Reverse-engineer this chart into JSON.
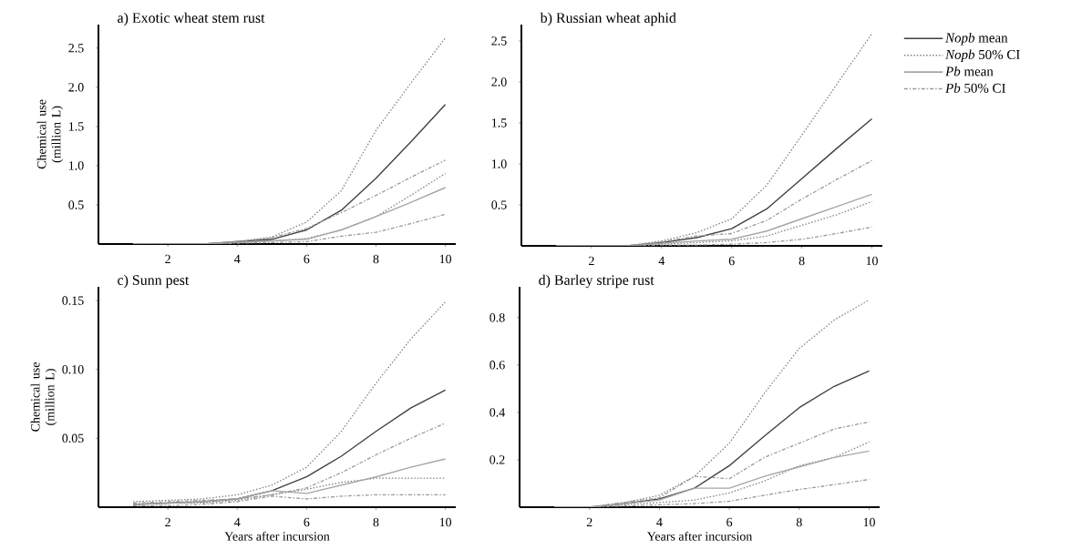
{
  "chart_data": [
    {
      "type": "line",
      "title": "a) Exotic wheat stem rust",
      "ylabel": "Chemical use (million L)",
      "x": [
        1,
        2,
        3,
        4,
        5,
        6,
        7,
        8,
        9,
        10
      ],
      "xlim": [
        0,
        10.3
      ],
      "ylim": [
        0,
        2.8
      ],
      "xticks": [
        2,
        4,
        6,
        8,
        10
      ],
      "yticks": [
        0.5,
        {
          "value": 1,
          "label": "1.0"
        },
        1.5,
        {
          "value": 2,
          "label": "2.0"
        },
        2.5
      ],
      "legend": false,
      "series": [
        {
          "color": "#404040",
          "line_style": "solid",
          "values": [
            0,
            0,
            0,
            0.03,
            0.06,
            0.18,
            0.43,
            0.84,
            1.3,
            1.78
          ]
        },
        {
          "color": "#808080",
          "line_style": "dotted",
          "values": [
            0,
            0,
            0,
            0.03,
            0.09,
            0.28,
            0.68,
            1.45,
            2.05,
            2.63
          ]
        },
        {
          "color": "#808080",
          "line_style": "dotted",
          "values": [
            0,
            0,
            0,
            0.02,
            0.04,
            0.07,
            0.18,
            0.35,
            0.62,
            0.9
          ]
        },
        {
          "color": "#a6a6a6",
          "line_style": "solid",
          "values": [
            0,
            0,
            0,
            0.02,
            0.04,
            0.06,
            0.18,
            0.35,
            0.53,
            0.72
          ]
        },
        {
          "color": "#999999",
          "line_style": "dashdot",
          "values": [
            0,
            0,
            0,
            0.03,
            0.08,
            0.2,
            0.4,
            0.62,
            0.85,
            1.07
          ]
        },
        {
          "color": "#999999",
          "line_style": "dashdot",
          "values": [
            0,
            0,
            0,
            0.01,
            0.02,
            0.03,
            0.1,
            0.15,
            0.26,
            0.38
          ]
        }
      ]
    },
    {
      "type": "line",
      "title": "b) Russian wheat aphid",
      "x": [
        1,
        2,
        3,
        4,
        5,
        6,
        7,
        8,
        9,
        10
      ],
      "xlim": [
        0,
        10.3
      ],
      "ylim": [
        0,
        2.7
      ],
      "xticks": [
        2,
        4,
        6,
        8,
        10
      ],
      "yticks": [
        0.5,
        {
          "value": 1,
          "label": "1.0"
        },
        1.5,
        {
          "value": 2,
          "label": "2.0"
        },
        2.5
      ],
      "legend": "right",
      "series": [
        {
          "name": "*Nopb* mean",
          "color": "#404040",
          "line_style": "solid",
          "values": [
            0,
            0,
            0,
            0.04,
            0.1,
            0.21,
            0.45,
            0.82,
            1.19,
            1.55
          ]
        },
        {
          "name": "*Nopb* 50% CI",
          "color": "#808080",
          "line_style": "dotted",
          "values": [
            0,
            0,
            0,
            0.06,
            0.16,
            0.33,
            0.74,
            1.35,
            1.97,
            2.59
          ]
        },
        {
          "color": "#808080",
          "line_style": "dotted",
          "values": [
            0,
            0,
            0,
            0.02,
            0.04,
            0.06,
            0.12,
            0.25,
            0.38,
            0.54
          ]
        },
        {
          "name": "*Pb* mean",
          "color": "#a6a6a6",
          "line_style": "solid",
          "values": [
            0,
            0,
            0,
            0.03,
            0.06,
            0.08,
            0.18,
            0.33,
            0.48,
            0.63
          ]
        },
        {
          "name": "*Pb* 50% CI",
          "color": "#999999",
          "line_style": "dashdot",
          "values": [
            0,
            0,
            0,
            0.05,
            0.12,
            0.15,
            0.31,
            0.57,
            0.81,
            1.04
          ]
        },
        {
          "color": "#999999",
          "line_style": "dashdot",
          "values": [
            0,
            0,
            0,
            0.01,
            0.01,
            0.02,
            0.04,
            0.08,
            0.15,
            0.23
          ]
        }
      ]
    },
    {
      "type": "line",
      "title": "c) Sunn pest",
      "xlabel": "Years after incursion",
      "ylabel": "Chemical use (million L)",
      "x": [
        1,
        2,
        3,
        4,
        5,
        6,
        7,
        8,
        9,
        10
      ],
      "xlim": [
        0,
        10.3
      ],
      "ylim": [
        0,
        0.16
      ],
      "xticks": [
        2,
        4,
        6,
        8,
        10
      ],
      "yticks": [
        0.05,
        {
          "value": 0.1,
          "label": "0.10"
        },
        0.15
      ],
      "legend": false,
      "series": [
        {
          "color": "#404040",
          "line_style": "solid",
          "values": [
            0.002,
            0.003,
            0.004,
            0.006,
            0.012,
            0.022,
            0.037,
            0.055,
            0.072,
            0.085
          ]
        },
        {
          "color": "#808080",
          "line_style": "dotted",
          "values": [
            0.004,
            0.005,
            0.006,
            0.009,
            0.016,
            0.029,
            0.055,
            0.09,
            0.122,
            0.149
          ]
        },
        {
          "color": "#808080",
          "line_style": "dotted",
          "values": [
            0.002,
            0.003,
            0.003,
            0.005,
            0.009,
            0.013,
            0.018,
            0.021,
            0.021,
            0.021
          ]
        },
        {
          "color": "#a6a6a6",
          "line_style": "solid",
          "values": [
            0.002,
            0.003,
            0.004,
            0.006,
            0.012,
            0.01,
            0.016,
            0.022,
            0.029,
            0.035
          ]
        },
        {
          "color": "#999999",
          "line_style": "dashdot",
          "values": [
            0.003,
            0.004,
            0.005,
            0.006,
            0.009,
            0.014,
            0.025,
            0.038,
            0.05,
            0.061
          ]
        },
        {
          "color": "#999999",
          "line_style": "dashdot",
          "values": [
            0.001,
            0.001,
            0.002,
            0.004,
            0.008,
            0.006,
            0.008,
            0.009,
            0.009,
            0.009
          ]
        }
      ]
    },
    {
      "type": "line",
      "title": "d) Barley stripe rust",
      "xlabel": "Years after incursion",
      "x": [
        1,
        2,
        3,
        4,
        5,
        6,
        7,
        8,
        9,
        10
      ],
      "xlim": [
        0,
        10.3
      ],
      "ylim": [
        0,
        0.93
      ],
      "xticks": [
        2,
        4,
        6,
        8,
        10
      ],
      "yticks": [
        0.2,
        0.4,
        0.6,
        0.8
      ],
      "legend": false,
      "series": [
        {
          "color": "#404040",
          "line_style": "solid",
          "values": [
            0,
            0,
            0.015,
            0.035,
            0.08,
            0.175,
            0.3,
            0.42,
            0.51,
            0.575
          ]
        },
        {
          "color": "#808080",
          "line_style": "dotted",
          "values": [
            0,
            0,
            0.02,
            0.05,
            0.13,
            0.27,
            0.48,
            0.67,
            0.79,
            0.875
          ]
        },
        {
          "color": "#808080",
          "line_style": "dotted",
          "values": [
            0,
            0,
            0.01,
            0.02,
            0.03,
            0.06,
            0.11,
            0.175,
            0.21,
            0.275
          ]
        },
        {
          "color": "#a6a6a6",
          "line_style": "solid",
          "values": [
            0,
            0,
            0.015,
            0.03,
            0.08,
            0.08,
            0.13,
            0.17,
            0.21,
            0.237
          ]
        },
        {
          "color": "#999999",
          "line_style": "dashdot",
          "values": [
            0,
            0,
            0.02,
            0.04,
            0.13,
            0.12,
            0.21,
            0.27,
            0.33,
            0.36
          ]
        },
        {
          "color": "#999999",
          "line_style": "dashdot",
          "values": [
            0,
            0,
            0.005,
            0.01,
            0.015,
            0.025,
            0.05,
            0.075,
            0.095,
            0.117
          ]
        }
      ]
    }
  ]
}
